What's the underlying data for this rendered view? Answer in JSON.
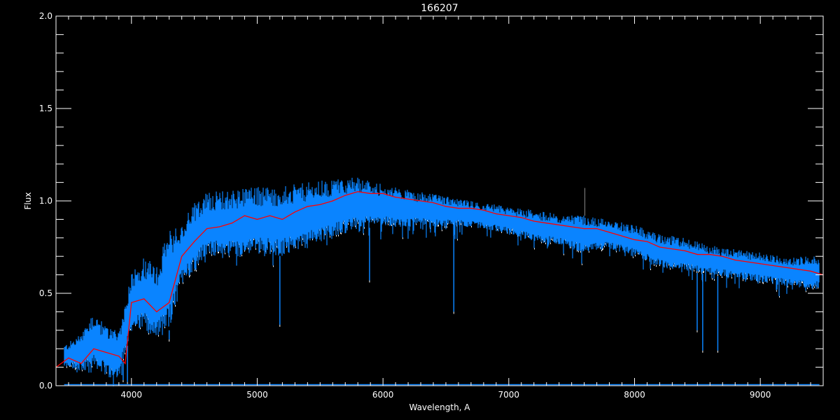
{
  "chart_data": {
    "type": "line",
    "title": "166207",
    "xlabel": "Wavelength, A",
    "ylabel": "Flux",
    "xlim": [
      3400,
      9500
    ],
    "ylim": [
      0.0,
      2.0
    ],
    "xticks": [
      4000,
      5000,
      6000,
      7000,
      8000,
      9000
    ],
    "xtick_labels": [
      "4000",
      "5000",
      "6000",
      "7000",
      "8000",
      "9000"
    ],
    "yticks": [
      0.0,
      0.5,
      1.0,
      1.5,
      2.0
    ],
    "ytick_labels": [
      "0.0",
      "0.5",
      "1.0",
      "1.5",
      "2.0"
    ],
    "grid": false,
    "colors": {
      "background": "#000000",
      "axes": "#ffffff",
      "spectrum": "#0a84ff",
      "spectrum_white": "#ffffff",
      "continuum": "#ff0000"
    },
    "continuum": {
      "x": [
        3400,
        3500,
        3600,
        3700,
        3800,
        3900,
        3950,
        4000,
        4100,
        4200,
        4300,
        4400,
        4500,
        4600,
        4700,
        4800,
        4900,
        5000,
        5100,
        5200,
        5300,
        5400,
        5500,
        5600,
        5700,
        5800,
        5900,
        6000,
        6100,
        6200,
        6300,
        6400,
        6500,
        6600,
        6700,
        6800,
        6900,
        7000,
        7100,
        7200,
        7300,
        7400,
        7500,
        7600,
        7700,
        7800,
        7900,
        8000,
        8100,
        8200,
        8300,
        8400,
        8500,
        8600,
        8700,
        8800,
        8900,
        9000,
        9100,
        9200,
        9300,
        9400,
        9500
      ],
      "y": [
        0.1,
        0.15,
        0.12,
        0.2,
        0.18,
        0.16,
        0.12,
        0.45,
        0.47,
        0.4,
        0.45,
        0.7,
        0.78,
        0.85,
        0.86,
        0.88,
        0.92,
        0.9,
        0.92,
        0.9,
        0.94,
        0.97,
        0.98,
        1.0,
        1.03,
        1.05,
        1.04,
        1.04,
        1.02,
        1.01,
        1.0,
        0.99,
        0.97,
        0.96,
        0.96,
        0.95,
        0.93,
        0.92,
        0.91,
        0.89,
        0.88,
        0.87,
        0.86,
        0.85,
        0.85,
        0.83,
        0.81,
        0.79,
        0.78,
        0.75,
        0.74,
        0.73,
        0.71,
        0.71,
        0.7,
        0.68,
        0.67,
        0.66,
        0.65,
        0.64,
        0.63,
        0.62,
        0.6
      ]
    },
    "spectrum": {
      "x_range": [
        3465,
        9470
      ],
      "envelope_x": [
        3465,
        3600,
        3700,
        3800,
        3900,
        4000,
        4100,
        4200,
        4300,
        4400,
        4500,
        4600,
        4800,
        5000,
        5200,
        5400,
        5600,
        5800,
        6000,
        6200,
        6400,
        6600,
        6800,
        7000,
        7200,
        7400,
        7600,
        7800,
        8000,
        8200,
        8400,
        8600,
        8800,
        9000,
        9200,
        9470
      ],
      "upper": [
        0.22,
        0.28,
        0.4,
        0.32,
        0.3,
        0.62,
        0.7,
        0.65,
        0.85,
        0.88,
        1.0,
        1.05,
        1.06,
        1.08,
        1.08,
        1.1,
        1.12,
        1.13,
        1.09,
        1.06,
        1.04,
        1.01,
        0.99,
        0.97,
        0.95,
        0.93,
        0.92,
        0.9,
        0.87,
        0.82,
        0.8,
        0.76,
        0.74,
        0.72,
        0.7,
        0.7
      ],
      "lower": [
        0.1,
        0.08,
        0.1,
        0.06,
        0.04,
        0.3,
        0.3,
        0.25,
        0.3,
        0.55,
        0.62,
        0.7,
        0.7,
        0.72,
        0.7,
        0.76,
        0.8,
        0.85,
        0.86,
        0.86,
        0.86,
        0.86,
        0.85,
        0.82,
        0.78,
        0.76,
        0.72,
        0.74,
        0.7,
        0.64,
        0.62,
        0.6,
        0.58,
        0.56,
        0.54,
        0.52
      ],
      "deep_lines": [
        {
          "x": 3934,
          "y": 0.03
        },
        {
          "x": 3968,
          "y": 0.02
        },
        {
          "x": 4300,
          "y": 0.25
        },
        {
          "x": 5180,
          "y": 0.33
        },
        {
          "x": 5893,
          "y": 0.57
        },
        {
          "x": 6563,
          "y": 0.4
        },
        {
          "x": 8498,
          "y": 0.3
        },
        {
          "x": 8542,
          "y": 0.19
        },
        {
          "x": 8662,
          "y": 0.19
        }
      ],
      "emission_lines": [
        {
          "x": 7605,
          "y": 1.07
        }
      ]
    }
  }
}
